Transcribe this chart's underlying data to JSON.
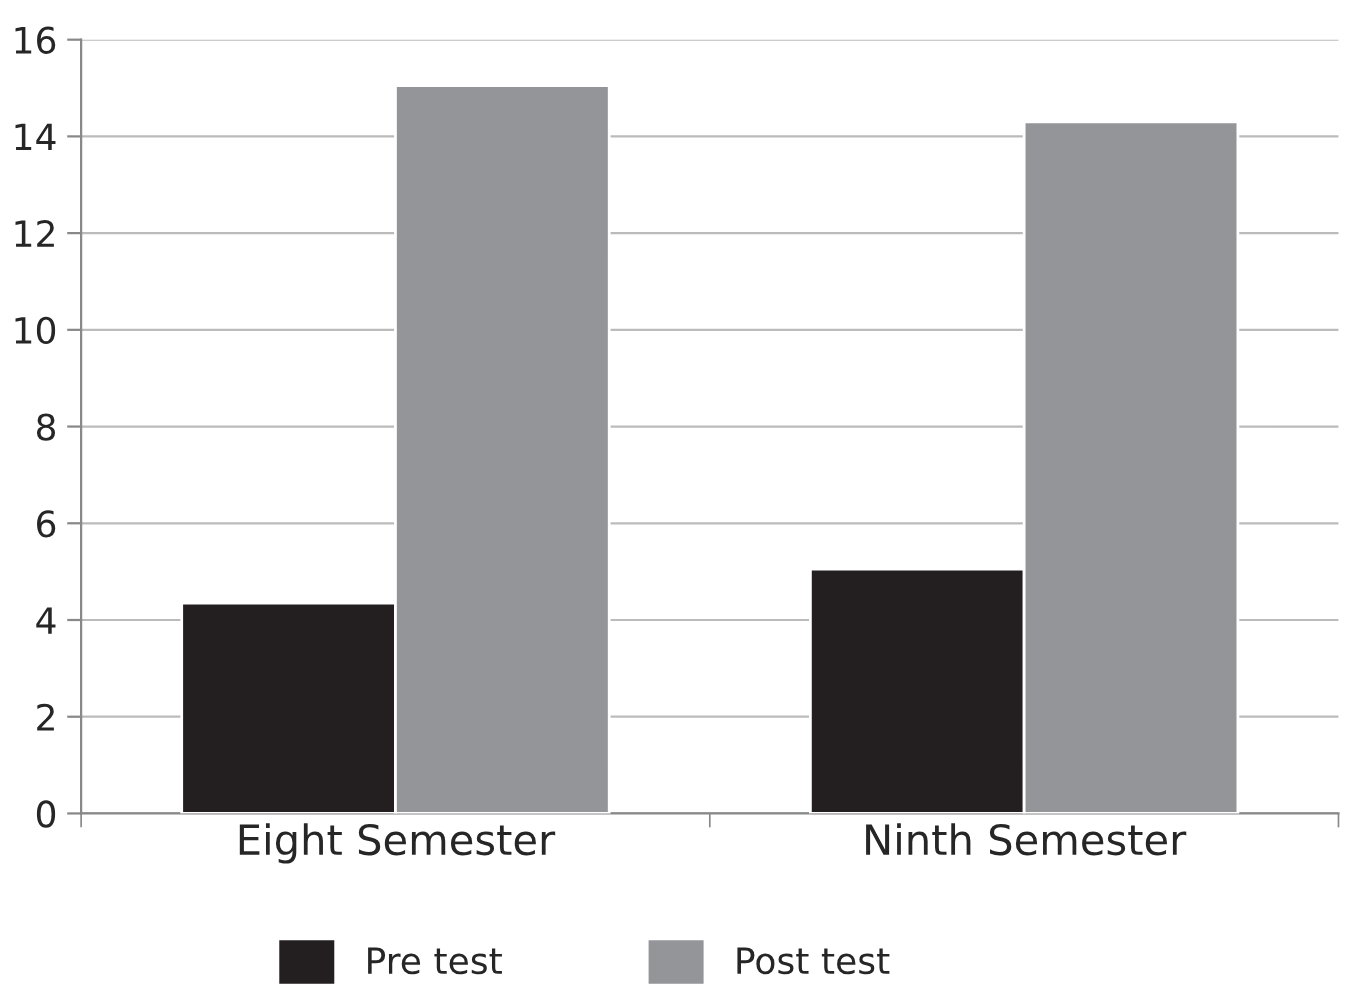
{
  "chart_data": {
    "type": "bar",
    "categories": [
      "Eight Semester",
      "Ninth Semester"
    ],
    "series": [
      {
        "name": "Pre test",
        "color": "#231f20",
        "values": [
          4.35,
          5.05
        ]
      },
      {
        "name": "Post test",
        "color": "#939598",
        "values": [
          15.05,
          14.3
        ]
      }
    ],
    "ylim": [
      0,
      16
    ],
    "yticks": [
      0,
      2,
      4,
      6,
      8,
      10,
      12,
      14,
      16
    ],
    "grid": "y",
    "legend": "bottom"
  }
}
